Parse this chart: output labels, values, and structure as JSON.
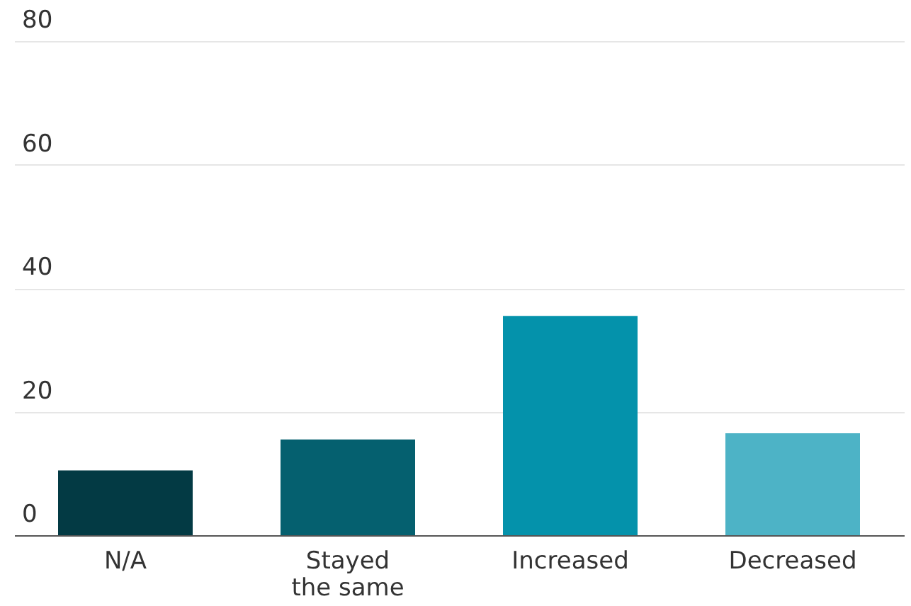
{
  "chart_data": {
    "type": "bar",
    "categories": [
      "N/A",
      "Stayed\nthe same",
      "Increased",
      "Decreased"
    ],
    "values": [
      10.5,
      15.5,
      35.5,
      16.5
    ],
    "colors": [
      "#033a44",
      "#05606f",
      "#0492ab",
      "#4db3c6"
    ],
    "ylim": [
      0,
      80
    ],
    "yticks": [
      0,
      20,
      40,
      60,
      80
    ],
    "grid": "y"
  }
}
